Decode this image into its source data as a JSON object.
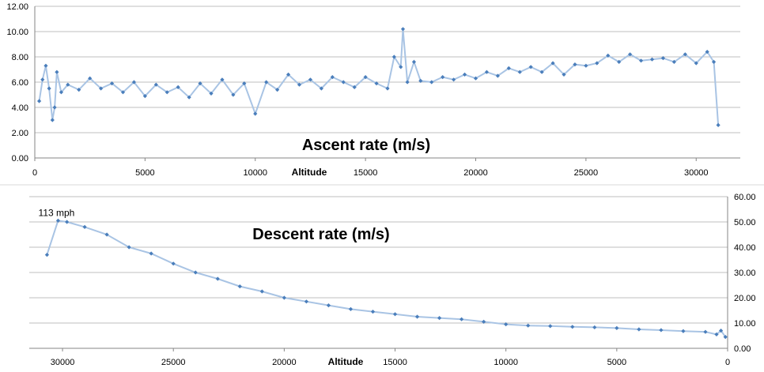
{
  "chart_data": [
    {
      "type": "line",
      "title": "Ascent rate (m/s)",
      "xlabel": "Altitude",
      "ylabel": "",
      "xlim": [
        0,
        32000
      ],
      "ylim": [
        0,
        12
      ],
      "x_reversed": false,
      "yaxis_side": "left",
      "grid": true,
      "xticks": [
        "0",
        "5000",
        "10000",
        "15000",
        "20000",
        "25000",
        "30000"
      ],
      "yticks": [
        "0.00",
        "2.00",
        "4.00",
        "6.00",
        "8.00",
        "10.00",
        "12.00"
      ],
      "series": [
        {
          "name": "Ascent rate",
          "color": "#4a7ebb",
          "line_color": "#a9c4e4",
          "x": [
            200,
            350,
            500,
            650,
            800,
            900,
            1000,
            1200,
            1500,
            2000,
            2500,
            3000,
            3500,
            4000,
            4500,
            5000,
            5500,
            6000,
            6500,
            7000,
            7500,
            8000,
            8500,
            9000,
            9500,
            10000,
            10500,
            11000,
            11500,
            12000,
            12500,
            13000,
            13500,
            14000,
            14500,
            15000,
            15500,
            16000,
            16300,
            16600,
            16700,
            16900,
            17200,
            17500,
            18000,
            18500,
            19000,
            19500,
            20000,
            20500,
            21000,
            21500,
            22000,
            22500,
            23000,
            23500,
            24000,
            24500,
            25000,
            25500,
            26000,
            26500,
            27000,
            27500,
            28000,
            28500,
            29000,
            29500,
            30000,
            30500,
            30800,
            31000
          ],
          "y": [
            4.5,
            6.2,
            7.3,
            5.5,
            3.0,
            4.0,
            6.8,
            5.2,
            5.8,
            5.4,
            6.3,
            5.5,
            5.9,
            5.2,
            6.0,
            4.9,
            5.8,
            5.2,
            5.6,
            4.8,
            5.9,
            5.1,
            6.2,
            5.0,
            5.9,
            3.5,
            6.0,
            5.4,
            6.6,
            5.8,
            6.2,
            5.5,
            6.4,
            6.0,
            5.6,
            6.4,
            5.9,
            5.5,
            8.0,
            7.2,
            10.2,
            6.0,
            7.6,
            6.1,
            6.0,
            6.4,
            6.2,
            6.6,
            6.3,
            6.8,
            6.5,
            7.1,
            6.8,
            7.2,
            6.8,
            7.5,
            6.6,
            7.4,
            7.3,
            7.5,
            8.1,
            7.6,
            8.2,
            7.7,
            7.8,
            7.9,
            7.6,
            8.2,
            7.5,
            8.4,
            7.6,
            2.6
          ]
        }
      ]
    },
    {
      "type": "line",
      "title": "Descent rate (m/s)",
      "xlabel": "Altitude",
      "ylabel": "",
      "xlim": [
        0,
        31500
      ],
      "ylim": [
        0,
        60
      ],
      "x_reversed": true,
      "yaxis_side": "right",
      "grid": true,
      "xticks": [
        "30000",
        "25000",
        "20000",
        "15000",
        "10000",
        "5000",
        "0"
      ],
      "yticks": [
        "0.00",
        "10.00",
        "20.00",
        "30.00",
        "40.00",
        "50.00",
        "60.00"
      ],
      "annotation": {
        "text": "113 mph",
        "x": 30200,
        "y": 50.5
      },
      "series": [
        {
          "name": "Descent rate",
          "color": "#4a7ebb",
          "line_color": "#a9c4e4",
          "x": [
            30700,
            30200,
            29800,
            29000,
            28000,
            27000,
            26000,
            25000,
            24000,
            23000,
            22000,
            21000,
            20000,
            19000,
            18000,
            17000,
            16000,
            15000,
            14000,
            13000,
            12000,
            11000,
            10000,
            9000,
            8000,
            7000,
            6000,
            5000,
            4000,
            3000,
            2000,
            1000,
            500,
            300,
            100
          ],
          "y": [
            37,
            50.5,
            50.0,
            48.0,
            45.0,
            40.0,
            37.5,
            33.5,
            30.0,
            27.5,
            24.5,
            22.5,
            20.0,
            18.5,
            17.0,
            15.5,
            14.5,
            13.5,
            12.5,
            12.0,
            11.5,
            10.5,
            9.5,
            9.0,
            8.8,
            8.5,
            8.3,
            8.0,
            7.5,
            7.2,
            6.8,
            6.5,
            5.5,
            7.0,
            4.5
          ]
        }
      ]
    }
  ]
}
